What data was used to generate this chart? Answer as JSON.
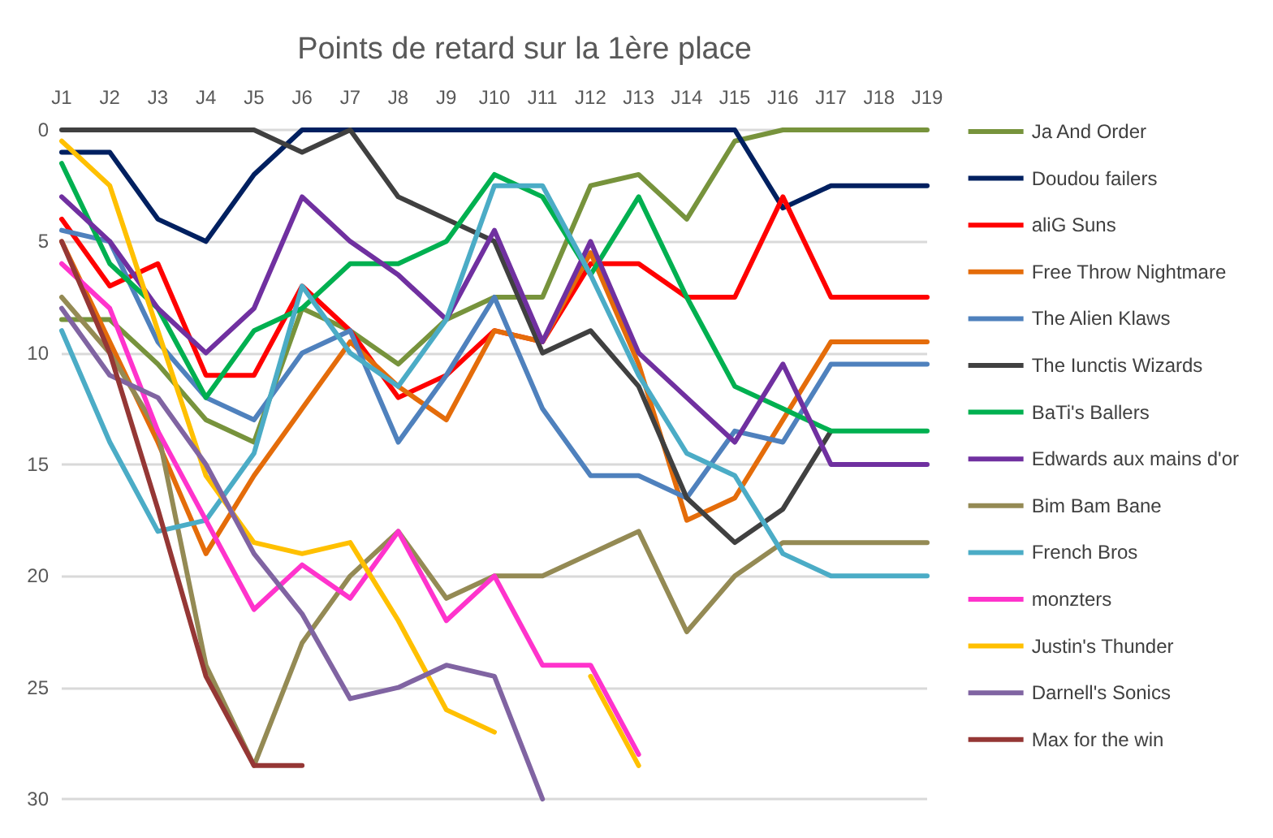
{
  "chart_data": {
    "type": "line",
    "title": "Points de retard sur la 1ère place",
    "categories": [
      "J1",
      "J2",
      "J3",
      "J4",
      "J5",
      "J6",
      "J7",
      "J8",
      "J9",
      "J10",
      "J11",
      "J12",
      "J13",
      "J14",
      "J15",
      "J16",
      "J17",
      "J18",
      "J19"
    ],
    "ylim": [
      30,
      0
    ],
    "yticks": [
      0,
      5,
      10,
      15,
      20,
      25,
      30
    ],
    "grid": "y",
    "legend": "right",
    "marker": "none",
    "line_style": "solid",
    "series": [
      {
        "name": "Ja And Order",
        "color": "#77933c",
        "values": [
          8.5,
          8.5,
          10.5,
          13,
          14,
          8,
          9,
          10.5,
          8.5,
          7.5,
          7.5,
          2.5,
          2,
          4,
          0.5,
          0,
          0,
          0,
          0
        ]
      },
      {
        "name": "Doudou failers",
        "color": "#002060",
        "values": [
          1,
          1,
          4,
          5,
          2,
          0,
          0,
          0,
          0,
          0,
          0,
          0,
          0,
          0,
          0,
          3.5,
          2.5,
          2.5,
          2.5
        ]
      },
      {
        "name": "aliG Suns",
        "color": "#ff0000",
        "values": [
          4,
          7,
          6,
          11,
          11,
          7,
          9,
          12,
          11,
          9,
          9.5,
          6,
          6,
          7.5,
          7.5,
          3,
          7.5,
          7.5,
          7.5
        ]
      },
      {
        "name": "Free Throw Nightmare",
        "color": "#e46c0a",
        "values": [
          5,
          9.5,
          14,
          19,
          15.5,
          12.5,
          9.5,
          11.5,
          13,
          9,
          9.5,
          5.5,
          10.5,
          17.5,
          16.5,
          13,
          9.5,
          9.5,
          9.5
        ]
      },
      {
        "name": "The Alien Klaws",
        "color": "#4f81bd",
        "values": [
          4.5,
          5,
          9.5,
          12,
          13,
          10,
          9,
          14,
          11,
          7.5,
          12.5,
          15.5,
          15.5,
          16.5,
          13.5,
          14,
          10.5,
          10.5,
          10.5
        ]
      },
      {
        "name": "The Iunctis Wizards",
        "color": "#404040",
        "values": [
          0,
          0,
          0,
          0,
          0,
          1,
          0,
          3,
          4,
          5,
          10,
          9,
          11.5,
          16.5,
          18.5,
          17,
          13.5,
          null,
          null
        ]
      },
      {
        "name": "BaTi's Ballers",
        "color": "#00b050",
        "values": [
          1.5,
          6,
          8,
          12,
          9,
          8,
          6,
          6,
          5,
          2,
          3,
          6.5,
          3,
          7.5,
          11.5,
          12.5,
          13.5,
          13.5,
          13.5
        ]
      },
      {
        "name": "Edwards aux mains d'or",
        "color": "#7030a0",
        "values": [
          3,
          5,
          8,
          10,
          8,
          3,
          5,
          6.5,
          8.5,
          4.5,
          9.5,
          5,
          10,
          12,
          14,
          10.5,
          15,
          15,
          15
        ]
      },
      {
        "name": "Bim Bam Bane",
        "color": "#948a54",
        "values": [
          7.5,
          10,
          13.5,
          24,
          28.5,
          23,
          20,
          18,
          21,
          20,
          20,
          19,
          18,
          22.5,
          20,
          18.5,
          18.5,
          18.5,
          18.5
        ]
      },
      {
        "name": "French Bros",
        "color": "#4bacc6",
        "values": [
          9,
          14,
          18,
          17.5,
          14.5,
          7,
          10,
          11.5,
          8.5,
          2.5,
          2.5,
          6.5,
          11,
          14.5,
          15.5,
          19,
          20,
          20,
          20
        ]
      },
      {
        "name": "monzters",
        "color": "#ff33cc",
        "values": [
          6,
          8,
          13.5,
          17.5,
          21.5,
          19.5,
          21,
          18,
          22,
          20,
          24,
          24,
          28,
          null,
          null,
          null,
          null,
          null,
          null
        ]
      },
      {
        "name": "Justin's Thunder",
        "color": "#ffc000",
        "values": [
          0.5,
          2.5,
          9,
          15.5,
          18.5,
          19,
          18.5,
          22,
          26,
          27,
          null,
          24.5,
          28.5,
          null,
          null,
          null,
          null,
          null,
          null
        ]
      },
      {
        "name": "Darnell's Sonics",
        "color": "#8064a2",
        "values": [
          8,
          11,
          12,
          15,
          19,
          21.7,
          25.5,
          25,
          24,
          24.5,
          30,
          null,
          null,
          null,
          null,
          null,
          null,
          null,
          null
        ]
      },
      {
        "name": "Max for the win",
        "color": "#953735",
        "values": [
          5,
          10,
          17,
          24.5,
          28.5,
          28.5,
          null,
          null,
          null,
          null,
          null,
          null,
          null,
          null,
          null,
          null,
          null,
          null,
          null
        ]
      }
    ]
  }
}
